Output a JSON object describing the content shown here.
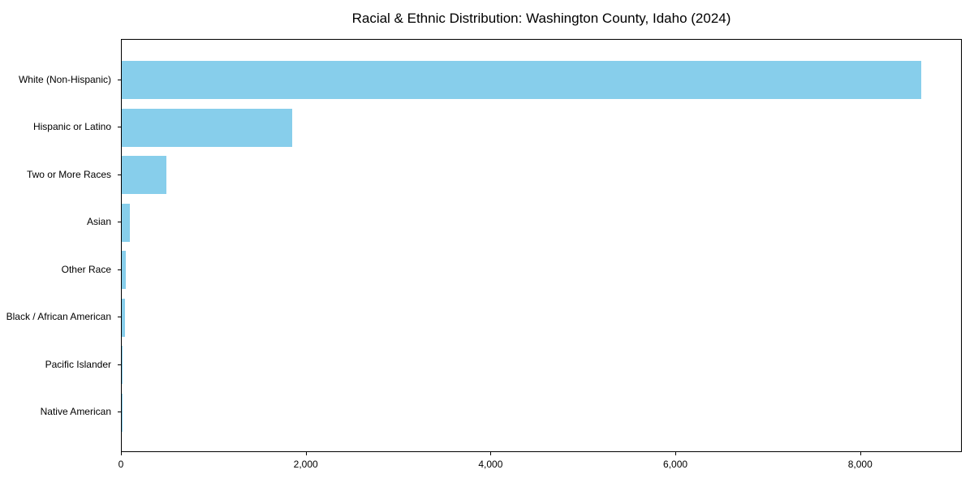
{
  "chart_data": {
    "type": "bar",
    "orientation": "horizontal",
    "title": "Racial & Ethnic Distribution: Washington County, Idaho (2024)",
    "categories": [
      "White (Non-Hispanic)",
      "Hispanic or Latino",
      "Two or More Races",
      "Asian",
      "Other Race",
      "Black / African American",
      "Pacific Islander",
      "Native American"
    ],
    "values": [
      8670,
      1850,
      480,
      85,
      45,
      35,
      10,
      5
    ],
    "xlabel": "",
    "ylabel": "",
    "xlim": [
      0,
      9100
    ],
    "x_ticks": [
      {
        "value": 0,
        "label": "0"
      },
      {
        "value": 2000,
        "label": "2,000"
      },
      {
        "value": 4000,
        "label": "4,000"
      },
      {
        "value": 6000,
        "label": "6,000"
      },
      {
        "value": 8000,
        "label": "8,000"
      }
    ],
    "bar_color": "#87CEEB",
    "grid": false,
    "legend": "none",
    "plot_border_color": "#000000"
  }
}
